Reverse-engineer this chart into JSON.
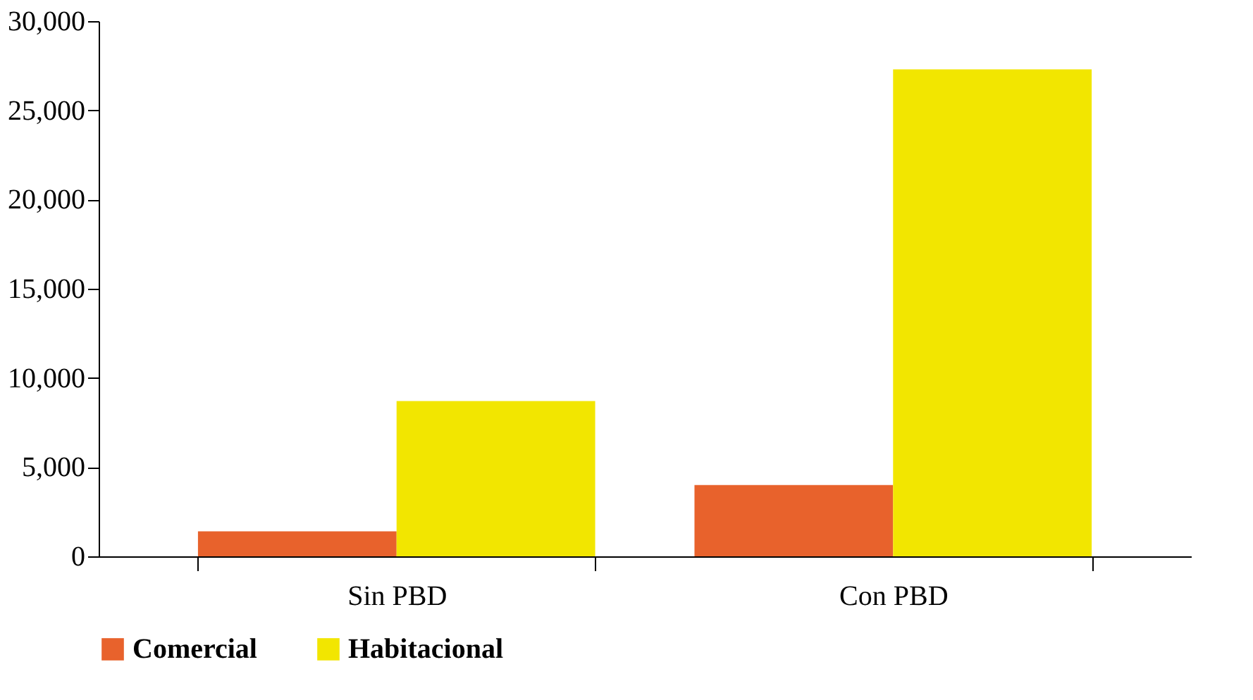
{
  "chart_data": {
    "type": "bar",
    "categories": [
      "Sin PBD",
      "Con PBD"
    ],
    "series": [
      {
        "name": "Comercial",
        "color": "#e8622c",
        "values": [
          1400,
          4000
        ]
      },
      {
        "name": "Habitacional",
        "color": "#f2e600",
        "values": [
          8700,
          27300
        ]
      }
    ],
    "ylim": [
      0,
      30000
    ],
    "yticks": [
      0,
      {
        "value": 5000,
        "label": "5,000"
      },
      {
        "value": 10000,
        "label": "10,000"
      },
      {
        "value": 15000,
        "label": "15,000"
      },
      {
        "value": 20000,
        "label": "20,000"
      },
      {
        "value": 25000,
        "label": "25,000"
      },
      {
        "value": 30000,
        "label": "30,000"
      }
    ],
    "grid": false,
    "legend": "bottom"
  }
}
